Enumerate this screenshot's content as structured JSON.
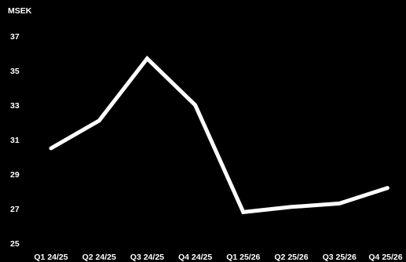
{
  "chart_data": {
    "type": "line",
    "unit_label": "MSEK",
    "categories": [
      "Q1 24/25",
      "Q2 24/25",
      "Q3 24/25",
      "Q4 24/25",
      "Q1 25/26",
      "Q2 25/26",
      "Q3 25/26",
      "Q4 25/26"
    ],
    "series": [
      {
        "values": [
          30.5,
          32.1,
          35.7,
          33.0,
          26.8,
          27.1,
          27.3,
          28.2
        ]
      }
    ],
    "yticks": [
      25,
      27,
      29,
      31,
      33,
      35,
      37
    ],
    "ylim": [
      25,
      37
    ],
    "grid": false,
    "colors": {
      "background": "#000000",
      "line": "#ffffff",
      "text": "#ffffff"
    }
  }
}
